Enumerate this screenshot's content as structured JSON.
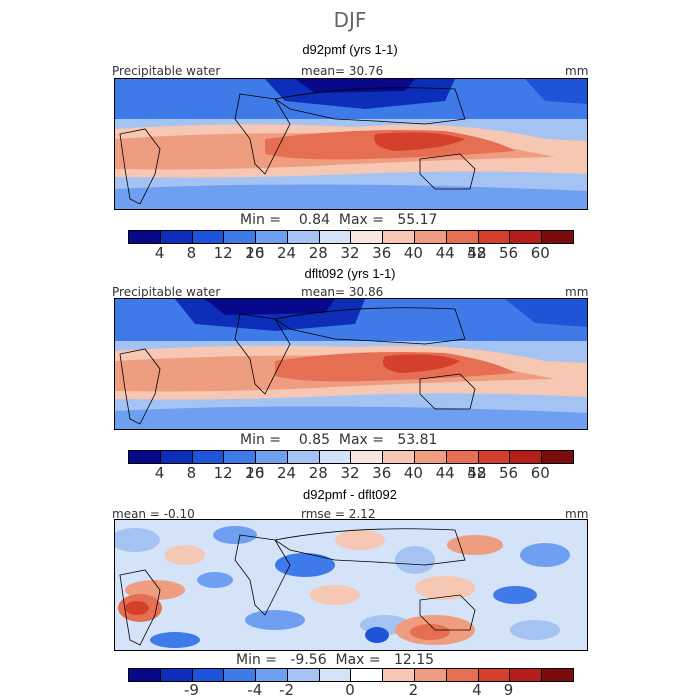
{
  "figure_title": "DJF",
  "colors": {
    "map_colors": [
      "#08088a",
      "#0c2eb8",
      "#1e55d8",
      "#3f7be8",
      "#6f9ff0",
      "#a4c3f3",
      "#d4e3f7",
      "#f6e8e1",
      "#f6c7b3",
      "#ef9d80",
      "#e66e52",
      "#d5402d",
      "#b51e1a",
      "#7a0c0c"
    ],
    "diff_colors": [
      "#08088a",
      "#0c2eb8",
      "#1e55d8",
      "#3f7be8",
      "#6f9ff0",
      "#a4c3f3",
      "#d4e3f7",
      "#ffffff",
      "#f6c7b3",
      "#ef9d80",
      "#e66e52",
      "#d5402d",
      "#b51e1a",
      "#7a0c0c"
    ]
  },
  "chart_data": [
    {
      "type": "heatmap",
      "title": "d92pmf (yrs 1-1)",
      "field_label": "Precipitable water",
      "mean_text": "mean=   30.76",
      "units": "mm",
      "minmax_text": "Min =    0.84  Max =   55.17",
      "min": 0.84,
      "max": 55.17,
      "mean": 30.76,
      "colorbar_ticks": [
        "4",
        "8",
        "12",
        "16",
        "20",
        "24",
        "28",
        "32",
        "36",
        "40",
        "44",
        "48",
        "52",
        "56",
        "60"
      ]
    },
    {
      "type": "heatmap",
      "title": "dflt092 (yrs 1-1)",
      "field_label": "Precipitable water",
      "mean_text": "mean=   30.86",
      "units": "mm",
      "minmax_text": "Min =    0.85  Max =   53.81",
      "min": 0.85,
      "max": 53.81,
      "mean": 30.86,
      "colorbar_ticks": [
        "4",
        "8",
        "12",
        "16",
        "20",
        "24",
        "28",
        "32",
        "36",
        "40",
        "44",
        "48",
        "52",
        "56",
        "60"
      ]
    },
    {
      "type": "heatmap",
      "title": "d92pmf - dflt092",
      "mean_text": "mean =  -0.10",
      "rmse_text": "rmse =    2.12",
      "units": "mm",
      "minmax_text": "Min =   -9.56  Max =   12.15",
      "min": -9.56,
      "max": 12.15,
      "mean": -0.1,
      "rmse": 2.12,
      "colorbar_ticks": [
        "-9",
        "-4",
        "-2",
        "0",
        "2",
        "4",
        "9"
      ]
    }
  ]
}
